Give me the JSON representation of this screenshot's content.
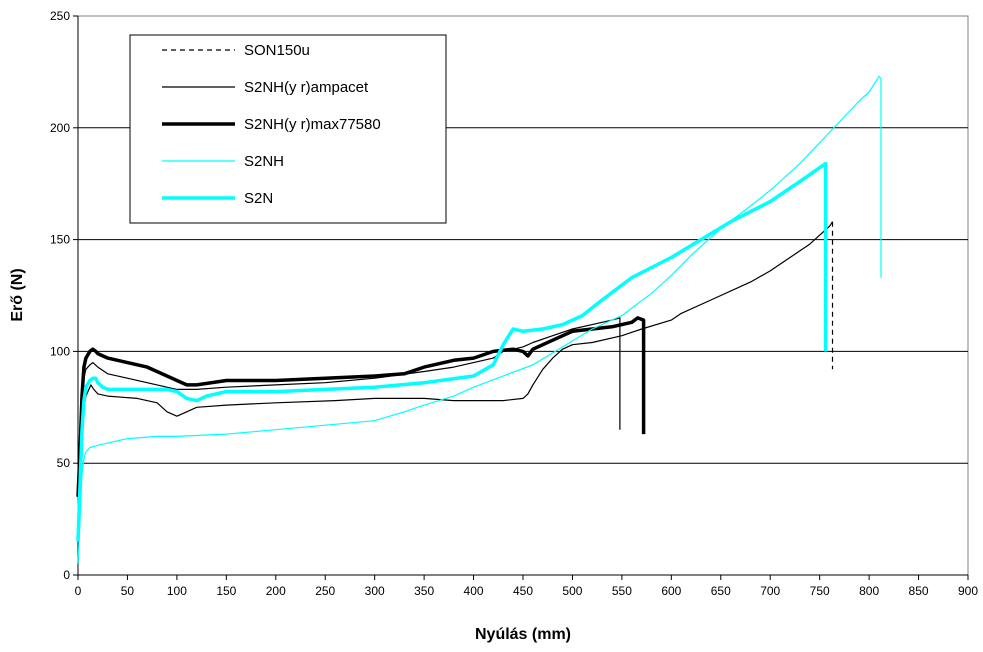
{
  "chart_data": {
    "type": "line",
    "title": "",
    "xlabel": "Nyúlás (mm)",
    "ylabel": "Erő (N)",
    "xlim": [
      0,
      900
    ],
    "ylim": [
      0,
      250
    ],
    "xticks": [
      0,
      50,
      100,
      150,
      200,
      250,
      300,
      350,
      400,
      450,
      500,
      550,
      600,
      650,
      700,
      750,
      800,
      850,
      900
    ],
    "yticks": [
      0,
      50,
      100,
      150,
      200,
      250
    ],
    "grid": "horizontal",
    "legend": "top-left",
    "series": [
      {
        "name": "SON150u",
        "color": "#000000",
        "style": "dashed-end",
        "points": [
          [
            0,
            5
          ],
          [
            2,
            40
          ],
          [
            4,
            62
          ],
          [
            6,
            75
          ],
          [
            8,
            80
          ],
          [
            10,
            82
          ],
          [
            13,
            85
          ],
          [
            16,
            83
          ],
          [
            20,
            81
          ],
          [
            30,
            80
          ],
          [
            60,
            79
          ],
          [
            80,
            77
          ],
          [
            90,
            73
          ],
          [
            100,
            71
          ],
          [
            110,
            73
          ],
          [
            120,
            75
          ],
          [
            150,
            76
          ],
          [
            200,
            77
          ],
          [
            260,
            78
          ],
          [
            300,
            79
          ],
          [
            350,
            79
          ],
          [
            380,
            78
          ],
          [
            400,
            78
          ],
          [
            430,
            78
          ],
          [
            450,
            79
          ],
          [
            455,
            81
          ],
          [
            460,
            85
          ],
          [
            470,
            92
          ],
          [
            480,
            97
          ],
          [
            490,
            101
          ],
          [
            500,
            103
          ],
          [
            520,
            104
          ],
          [
            550,
            107
          ],
          [
            570,
            110
          ],
          [
            600,
            114
          ],
          [
            610,
            117
          ],
          [
            640,
            123
          ],
          [
            680,
            131
          ],
          [
            700,
            136
          ],
          [
            720,
            142
          ],
          [
            740,
            148
          ],
          [
            760,
            156
          ],
          [
            763,
            158
          ],
          [
            763,
            92
          ]
        ]
      },
      {
        "name": "S2NH(y r)ampacet",
        "color": "#000000",
        "style": "thin",
        "points": [
          [
            0,
            5
          ],
          [
            2,
            45
          ],
          [
            4,
            75
          ],
          [
            6,
            88
          ],
          [
            8,
            92
          ],
          [
            12,
            94
          ],
          [
            15,
            95
          ],
          [
            20,
            93
          ],
          [
            30,
            90
          ],
          [
            50,
            88
          ],
          [
            70,
            86
          ],
          [
            90,
            84
          ],
          [
            100,
            83
          ],
          [
            110,
            83
          ],
          [
            120,
            83
          ],
          [
            150,
            84
          ],
          [
            200,
            85
          ],
          [
            250,
            86
          ],
          [
            300,
            88
          ],
          [
            350,
            91
          ],
          [
            380,
            93
          ],
          [
            400,
            95
          ],
          [
            420,
            97
          ],
          [
            430,
            100
          ],
          [
            450,
            102
          ],
          [
            460,
            104
          ],
          [
            480,
            107
          ],
          [
            500,
            110
          ],
          [
            520,
            112
          ],
          [
            540,
            114
          ],
          [
            548,
            115
          ],
          [
            548,
            65
          ]
        ]
      },
      {
        "name": "S2NH(y r)max77580",
        "color": "#000000",
        "style": "thick",
        "points": [
          [
            0,
            35
          ],
          [
            2,
            55
          ],
          [
            4,
            80
          ],
          [
            6,
            93
          ],
          [
            8,
            97
          ],
          [
            12,
            100
          ],
          [
            15,
            101
          ],
          [
            18,
            100
          ],
          [
            20,
            99
          ],
          [
            30,
            97
          ],
          [
            50,
            95
          ],
          [
            70,
            93
          ],
          [
            90,
            89
          ],
          [
            100,
            87
          ],
          [
            110,
            85
          ],
          [
            120,
            85
          ],
          [
            150,
            87
          ],
          [
            200,
            87
          ],
          [
            250,
            88
          ],
          [
            300,
            89
          ],
          [
            330,
            90
          ],
          [
            350,
            93
          ],
          [
            380,
            96
          ],
          [
            400,
            97
          ],
          [
            420,
            100
          ],
          [
            440,
            101
          ],
          [
            450,
            100
          ],
          [
            455,
            98
          ],
          [
            460,
            101
          ],
          [
            480,
            105
          ],
          [
            500,
            109
          ],
          [
            520,
            110
          ],
          [
            540,
            111
          ],
          [
            560,
            113
          ],
          [
            566,
            115
          ],
          [
            572,
            114
          ],
          [
            572,
            63
          ]
        ]
      },
      {
        "name": "S2NH",
        "color": "#00FFFF",
        "style": "thin",
        "points": [
          [
            0,
            5
          ],
          [
            2,
            25
          ],
          [
            4,
            45
          ],
          [
            6,
            52
          ],
          [
            8,
            55
          ],
          [
            12,
            57
          ],
          [
            20,
            58
          ],
          [
            30,
            59
          ],
          [
            50,
            61
          ],
          [
            80,
            62
          ],
          [
            100,
            62
          ],
          [
            150,
            63
          ],
          [
            200,
            65
          ],
          [
            250,
            67
          ],
          [
            300,
            69
          ],
          [
            330,
            73
          ],
          [
            350,
            76
          ],
          [
            380,
            80
          ],
          [
            400,
            84
          ],
          [
            430,
            89
          ],
          [
            460,
            94
          ],
          [
            490,
            102
          ],
          [
            520,
            110
          ],
          [
            550,
            116
          ],
          [
            580,
            126
          ],
          [
            600,
            134
          ],
          [
            620,
            143
          ],
          [
            650,
            155
          ],
          [
            680,
            165
          ],
          [
            700,
            172
          ],
          [
            730,
            184
          ],
          [
            760,
            198
          ],
          [
            790,
            212
          ],
          [
            800,
            216
          ],
          [
            810,
            223
          ],
          [
            812,
            222
          ],
          [
            812,
            133
          ]
        ]
      },
      {
        "name": "S2N",
        "color": "#00FFFF",
        "style": "thick",
        "points": [
          [
            0,
            15
          ],
          [
            2,
            40
          ],
          [
            4,
            65
          ],
          [
            6,
            78
          ],
          [
            8,
            84
          ],
          [
            12,
            87
          ],
          [
            15,
            88
          ],
          [
            18,
            88
          ],
          [
            20,
            86
          ],
          [
            25,
            84
          ],
          [
            30,
            83
          ],
          [
            50,
            83
          ],
          [
            70,
            83
          ],
          [
            90,
            83
          ],
          [
            100,
            82
          ],
          [
            110,
            79
          ],
          [
            120,
            78
          ],
          [
            130,
            80
          ],
          [
            150,
            82
          ],
          [
            200,
            82
          ],
          [
            250,
            83
          ],
          [
            300,
            84
          ],
          [
            350,
            86
          ],
          [
            400,
            89
          ],
          [
            420,
            94
          ],
          [
            430,
            103
          ],
          [
            440,
            110
          ],
          [
            450,
            109
          ],
          [
            470,
            110
          ],
          [
            490,
            112
          ],
          [
            510,
            116
          ],
          [
            530,
            123
          ],
          [
            560,
            133
          ],
          [
            600,
            142
          ],
          [
            630,
            150
          ],
          [
            660,
            158
          ],
          [
            700,
            167
          ],
          [
            730,
            176
          ],
          [
            756,
            184
          ],
          [
            756,
            100
          ]
        ]
      }
    ]
  }
}
